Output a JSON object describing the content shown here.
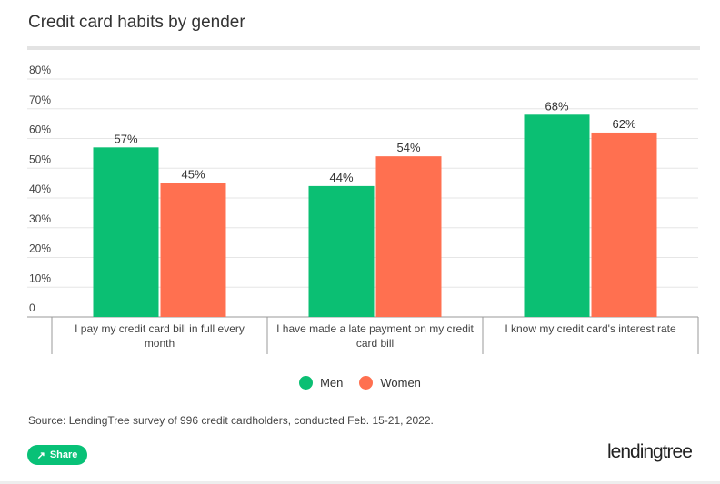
{
  "title": "Credit card habits by gender",
  "chart_data": {
    "type": "bar",
    "title": "Credit card habits by gender",
    "categories": [
      "I pay my credit card bill in full every month",
      "I have made a late payment on my credit card bill",
      "I know my credit card's interest rate"
    ],
    "category_lines": [
      [
        "I pay my credit card bill in full every",
        "month"
      ],
      [
        "I have made a late payment on my credit",
        "card bill"
      ],
      [
        "I know my credit card's interest rate"
      ]
    ],
    "series": [
      {
        "name": "Men",
        "color": "#0bbf73",
        "values": [
          57,
          44,
          68
        ]
      },
      {
        "name": "Women",
        "color": "#ff7050",
        "values": [
          45,
          54,
          62
        ]
      }
    ],
    "ylim": [
      0,
      80
    ],
    "yticks": [
      "0",
      "10%",
      "20%",
      "30%",
      "40%",
      "50%",
      "60%",
      "70%",
      "80%"
    ],
    "grid": true,
    "legend": "bottom"
  },
  "source": "Source: LendingTree survey of 996 credit cardholders, conducted Feb. 15-21, 2022.",
  "share_label": "Share",
  "logo": "lendingtree"
}
